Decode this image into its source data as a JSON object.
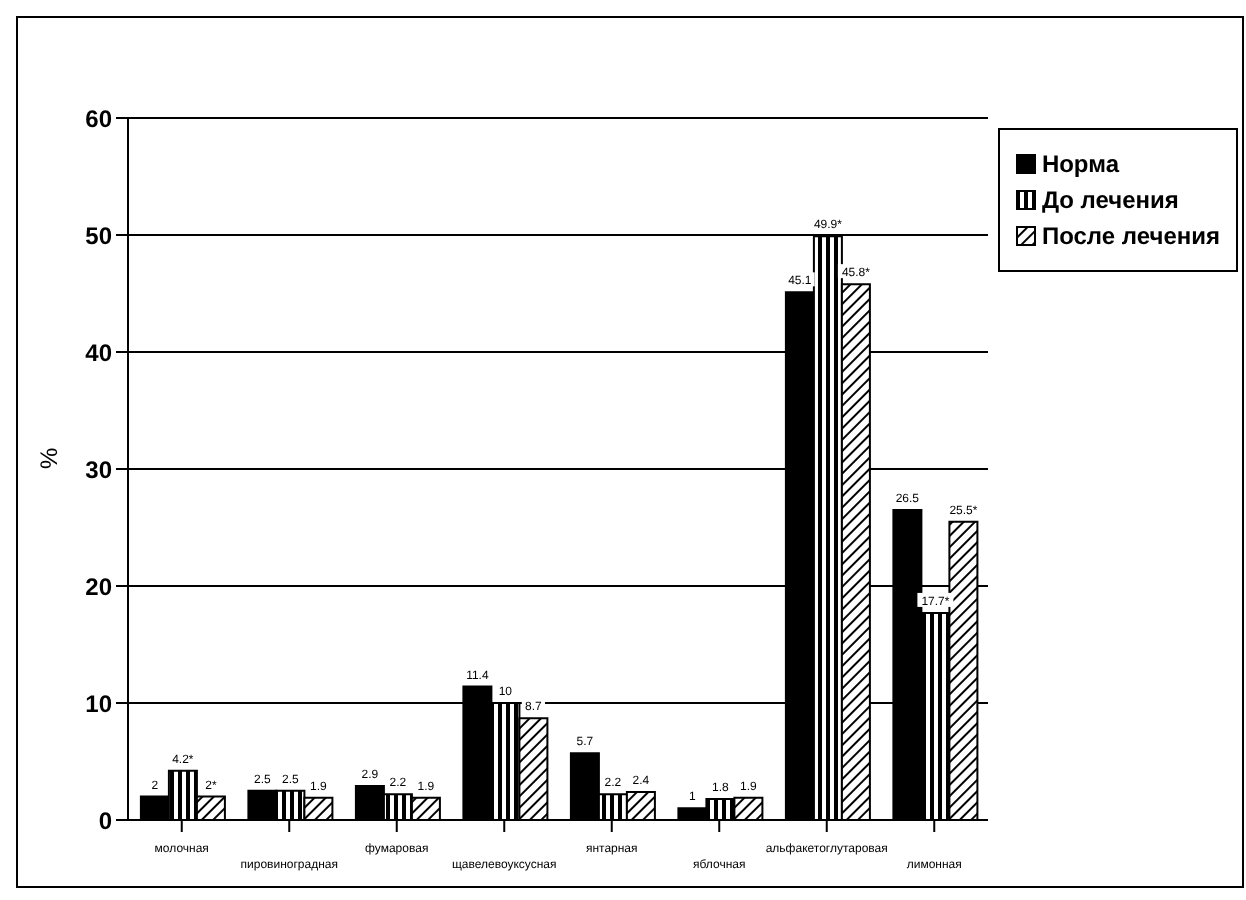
{
  "chart_data": {
    "type": "bar",
    "ylabel": "%",
    "categories": [
      "молочная",
      "пировиноградная",
      "фумаровая",
      "щавелевоуксусная",
      "янтарная",
      "яблочная",
      "альфакетоглутаровая",
      "лимонная"
    ],
    "series": [
      {
        "name": "Норма",
        "color": "#000000",
        "values": [
          2,
          2.5,
          2.9,
          11.4,
          5.7,
          1,
          45.1,
          26.5
        ],
        "value_labels": [
          "2",
          "2.5",
          "2.9",
          "11.4",
          "5.7",
          "1",
          "45.1",
          "26.5"
        ]
      },
      {
        "name": "До лечения",
        "color": "#000000",
        "values": [
          4.2,
          2.5,
          2.2,
          10,
          2.2,
          1.8,
          49.9,
          17.7
        ],
        "value_labels": [
          "4.2*",
          "2.5",
          "2.2",
          "10",
          "2.2",
          "1.8",
          "49.9*",
          "17.7*"
        ]
      },
      {
        "name": "После лечения",
        "color": "#000000",
        "values": [
          2,
          1.9,
          1.9,
          8.7,
          2.4,
          1.9,
          45.8,
          25.5
        ],
        "value_labels": [
          "2*",
          "1.9",
          "1.9",
          "8.7",
          "2.4",
          "1.9",
          "45.8*",
          "25.5*"
        ]
      }
    ],
    "ylim": [
      0,
      60
    ],
    "yticks": [
      0,
      10,
      20,
      30,
      40,
      50,
      60
    ],
    "grid": "y",
    "legend": "top right"
  }
}
